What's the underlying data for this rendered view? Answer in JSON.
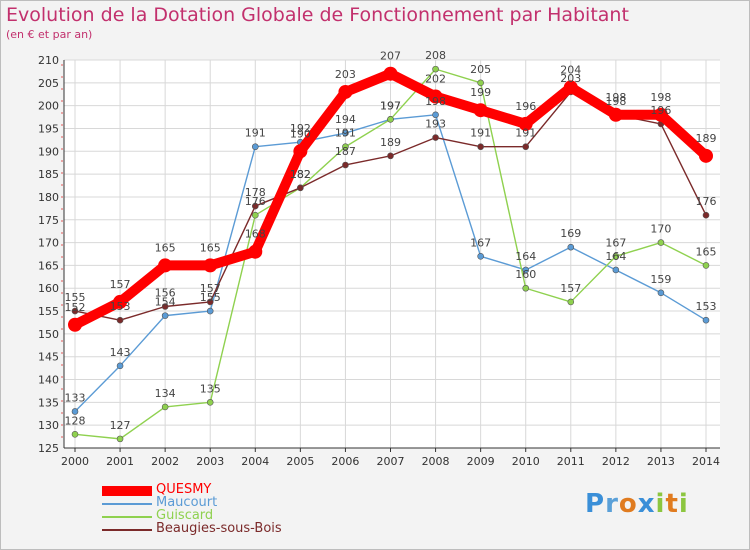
{
  "title": "Evolution de la Dotation Globale de Fonctionnement par Habitant",
  "subtitle": "(en € et par an)",
  "logo": {
    "text": "Proxiti",
    "letters": [
      "P",
      "r",
      "o",
      "x",
      "i",
      "t",
      "i"
    ]
  },
  "colors": {
    "title": "#c2306d",
    "QUESMY": "#ff0000",
    "Maucourt": "#5b9bd5",
    "Guiscard": "#8fd14f",
    "Beaugies-sous-Bois": "#7b2a2a"
  },
  "chart_data": {
    "type": "line",
    "title": "Evolution de la Dotation Globale de Fonctionnement par Habitant",
    "subtitle": "(en € et par an)",
    "xlabel": "",
    "ylabel": "",
    "ylim": [
      125,
      210
    ],
    "yticks": [
      125,
      130,
      135,
      140,
      145,
      150,
      155,
      160,
      165,
      170,
      175,
      180,
      185,
      190,
      195,
      200,
      205,
      210
    ],
    "grid": true,
    "legend_position": "bottom-left",
    "x": [
      "2000",
      "2001",
      "2002",
      "2003",
      "2004",
      "2005",
      "2006",
      "2007",
      "2008",
      "2009",
      "2010",
      "2011",
      "2012",
      "2013",
      "2014"
    ],
    "series": [
      {
        "name": "QUESMY",
        "color": "#ff0000",
        "values": [
          152,
          157,
          165,
          165,
          168,
          190,
          203,
          207,
          202,
          199,
          196,
          204,
          198,
          198,
          189
        ]
      },
      {
        "name": "Maucourt",
        "color": "#5b9bd5",
        "values": [
          133,
          143,
          154,
          155,
          191,
          192,
          194,
          197,
          198,
          167,
          164,
          169,
          164,
          159,
          153
        ]
      },
      {
        "name": "Guiscard",
        "color": "#8fd14f",
        "values": [
          128,
          127,
          134,
          135,
          176,
          182,
          191,
          197,
          208,
          205,
          160,
          157,
          167,
          170,
          165
        ]
      },
      {
        "name": "Beaugies-sous-Bois",
        "color": "#7b2a2a",
        "values": [
          155,
          153,
          156,
          157,
          178,
          182,
          187,
          189,
          193,
          191,
          191,
          203,
          198,
          196,
          176
        ]
      }
    ]
  }
}
